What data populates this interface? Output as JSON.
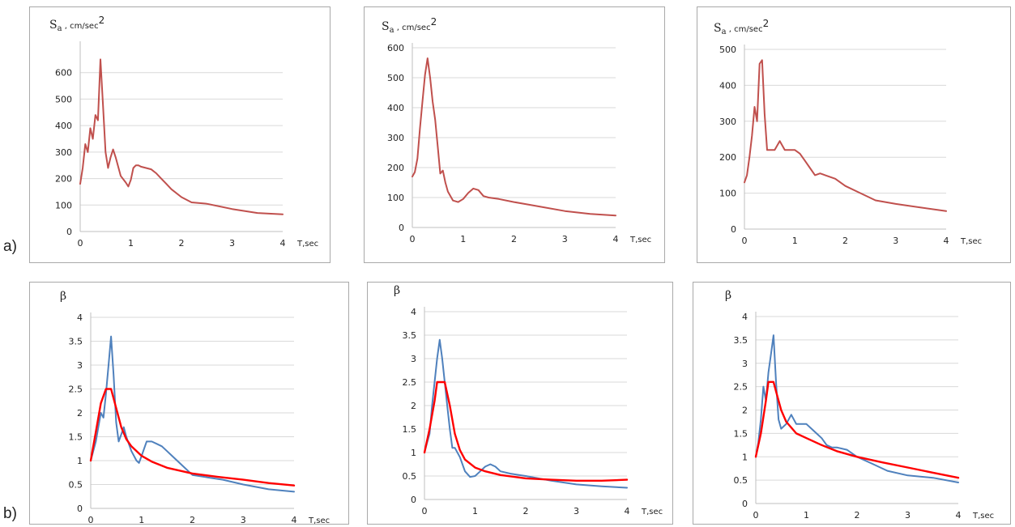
{
  "row_labels": [
    "a)",
    "b)"
  ],
  "chart_data": [
    {
      "type": "line",
      "row": "a)",
      "ylabel": "S",
      "ylabel_sub": "a",
      "ylabel_unit": ", cm/sec",
      "ylabel_sup": "2",
      "xlabel": "T,sec",
      "xlim": [
        0,
        4
      ],
      "ylim": [
        0,
        700
      ],
      "xticks": [
        0,
        1,
        2,
        3,
        4
      ],
      "yticks": [
        0,
        100,
        200,
        300,
        400,
        500,
        600
      ],
      "grid": true,
      "series": [
        {
          "color": "#c0504d",
          "x": [
            0,
            0.05,
            0.1,
            0.15,
            0.2,
            0.25,
            0.3,
            0.35,
            0.4,
            0.45,
            0.5,
            0.55,
            0.6,
            0.65,
            0.7,
            0.8,
            0.9,
            0.95,
            1.0,
            1.05,
            1.1,
            1.15,
            1.2,
            1.3,
            1.4,
            1.5,
            1.6,
            1.7,
            1.8,
            2.0,
            2.2,
            2.5,
            3.0,
            3.5,
            4.0
          ],
          "y": [
            180,
            240,
            330,
            300,
            390,
            350,
            440,
            420,
            650,
            480,
            300,
            240,
            280,
            310,
            280,
            210,
            185,
            170,
            195,
            240,
            250,
            250,
            245,
            240,
            235,
            220,
            200,
            180,
            160,
            130,
            110,
            105,
            85,
            70,
            65
          ]
        }
      ]
    },
    {
      "type": "line",
      "row": "a)",
      "ylabel": "S",
      "ylabel_sub": "a",
      "ylabel_unit": ", cm/sec",
      "ylabel_sup": "2",
      "xlabel": "T,sec",
      "xlim": [
        0,
        4
      ],
      "ylim": [
        0,
        600
      ],
      "xticks": [
        0,
        1,
        2,
        3,
        4
      ],
      "yticks": [
        0,
        100,
        200,
        300,
        400,
        500,
        600
      ],
      "grid": true,
      "series": [
        {
          "color": "#c0504d",
          "x": [
            0,
            0.05,
            0.1,
            0.15,
            0.2,
            0.25,
            0.3,
            0.35,
            0.4,
            0.45,
            0.5,
            0.55,
            0.6,
            0.65,
            0.7,
            0.8,
            0.9,
            1.0,
            1.1,
            1.2,
            1.3,
            1.4,
            1.5,
            1.7,
            2.0,
            2.5,
            3.0,
            3.5,
            4.0
          ],
          "y": [
            170,
            185,
            230,
            330,
            420,
            510,
            565,
            500,
            420,
            360,
            270,
            180,
            190,
            150,
            120,
            90,
            85,
            95,
            115,
            130,
            125,
            105,
            100,
            95,
            85,
            70,
            55,
            45,
            40
          ]
        }
      ]
    },
    {
      "type": "line",
      "row": "a)",
      "ylabel": "S",
      "ylabel_sub": "a",
      "ylabel_unit": ", cm/sec",
      "ylabel_sup": "2",
      "xlabel": "T,sec",
      "xlim": [
        0,
        4
      ],
      "ylim": [
        0,
        500
      ],
      "xticks": [
        0,
        1,
        2,
        3,
        4
      ],
      "yticks": [
        0,
        100,
        200,
        300,
        400,
        500
      ],
      "grid": true,
      "series": [
        {
          "color": "#c0504d",
          "x": [
            0,
            0.05,
            0.1,
            0.15,
            0.2,
            0.25,
            0.3,
            0.35,
            0.4,
            0.45,
            0.5,
            0.6,
            0.7,
            0.8,
            0.9,
            1.0,
            1.1,
            1.2,
            1.3,
            1.4,
            1.5,
            1.6,
            1.8,
            2.0,
            2.3,
            2.6,
            3.0,
            3.5,
            4.0
          ],
          "y": [
            130,
            150,
            200,
            260,
            340,
            300,
            460,
            470,
            320,
            220,
            220,
            220,
            245,
            220,
            220,
            220,
            210,
            190,
            170,
            150,
            155,
            150,
            140,
            120,
            100,
            80,
            70,
            60,
            50
          ]
        }
      ]
    },
    {
      "type": "line",
      "row": "b)",
      "ylabel": "β",
      "xlabel": "T,sec",
      "xlim": [
        0,
        4
      ],
      "ylim": [
        0,
        4
      ],
      "xticks": [
        0,
        1,
        2,
        3,
        4
      ],
      "yticks": [
        0,
        0.5,
        1,
        1.5,
        2,
        2.5,
        3,
        3.5,
        4
      ],
      "grid": true,
      "series": [
        {
          "color": "#4f81bd",
          "x": [
            0,
            0.1,
            0.15,
            0.2,
            0.25,
            0.3,
            0.35,
            0.4,
            0.45,
            0.5,
            0.55,
            0.6,
            0.65,
            0.7,
            0.8,
            0.9,
            0.95,
            1.0,
            1.1,
            1.2,
            1.3,
            1.4,
            1.5,
            1.6,
            1.8,
            2.0,
            2.3,
            2.6,
            3.0,
            3.5,
            4.0
          ],
          "y": [
            1.0,
            1.4,
            1.7,
            2.0,
            1.9,
            2.4,
            3.0,
            3.6,
            2.8,
            1.8,
            1.4,
            1.55,
            1.7,
            1.5,
            1.2,
            1.0,
            0.95,
            1.1,
            1.4,
            1.4,
            1.35,
            1.3,
            1.2,
            1.1,
            0.9,
            0.7,
            0.65,
            0.6,
            0.5,
            0.4,
            0.35
          ]
        },
        {
          "color": "#ff0000",
          "x": [
            0,
            0.1,
            0.2,
            0.3,
            0.4,
            0.5,
            0.6,
            0.7,
            0.8,
            1.0,
            1.2,
            1.5,
            2.0,
            2.5,
            3.0,
            3.5,
            4.0
          ],
          "y": [
            1.0,
            1.6,
            2.2,
            2.5,
            2.5,
            2.1,
            1.7,
            1.45,
            1.3,
            1.1,
            0.98,
            0.85,
            0.73,
            0.66,
            0.6,
            0.53,
            0.48
          ]
        }
      ]
    },
    {
      "type": "line",
      "row": "b)",
      "ylabel": "β",
      "xlabel": "T,sec",
      "xlim": [
        0,
        4
      ],
      "ylim": [
        0,
        4
      ],
      "xticks": [
        0,
        1,
        2,
        3,
        4
      ],
      "yticks": [
        0,
        0.5,
        1,
        1.5,
        2,
        2.5,
        3,
        3.5,
        4
      ],
      "grid": true,
      "series": [
        {
          "color": "#4f81bd",
          "x": [
            0,
            0.05,
            0.1,
            0.15,
            0.2,
            0.25,
            0.3,
            0.35,
            0.4,
            0.45,
            0.5,
            0.55,
            0.6,
            0.7,
            0.8,
            0.9,
            1.0,
            1.1,
            1.2,
            1.3,
            1.4,
            1.5,
            1.7,
            2.0,
            2.5,
            3.0,
            3.5,
            4.0
          ],
          "y": [
            1.0,
            1.2,
            1.4,
            2.0,
            2.5,
            3.0,
            3.4,
            3.0,
            2.5,
            2.0,
            1.5,
            1.1,
            1.1,
            0.9,
            0.6,
            0.48,
            0.5,
            0.6,
            0.7,
            0.75,
            0.7,
            0.6,
            0.55,
            0.5,
            0.4,
            0.32,
            0.28,
            0.25
          ]
        },
        {
          "color": "#ff0000",
          "x": [
            0,
            0.1,
            0.2,
            0.25,
            0.3,
            0.4,
            0.5,
            0.6,
            0.7,
            0.8,
            1.0,
            1.2,
            1.5,
            2.0,
            2.5,
            3.0,
            3.5,
            4.0
          ],
          "y": [
            1.0,
            1.5,
            2.1,
            2.5,
            2.5,
            2.5,
            2.0,
            1.4,
            1.05,
            0.85,
            0.68,
            0.6,
            0.52,
            0.45,
            0.42,
            0.4,
            0.4,
            0.42
          ]
        }
      ]
    },
    {
      "type": "line",
      "row": "b)",
      "ylabel": "β",
      "xlabel": "T,sec",
      "xlim": [
        0,
        4
      ],
      "ylim": [
        0,
        4
      ],
      "xticks": [
        0,
        1,
        2,
        3,
        4
      ],
      "yticks": [
        0,
        0.5,
        1,
        1.5,
        2,
        2.5,
        3,
        3.5,
        4
      ],
      "grid": true,
      "series": [
        {
          "color": "#4f81bd",
          "x": [
            0,
            0.05,
            0.1,
            0.15,
            0.2,
            0.25,
            0.3,
            0.35,
            0.4,
            0.45,
            0.5,
            0.6,
            0.7,
            0.8,
            0.9,
            1.0,
            1.1,
            1.2,
            1.3,
            1.4,
            1.5,
            1.6,
            1.8,
            2.0,
            2.3,
            2.6,
            3.0,
            3.5,
            4.0
          ],
          "y": [
            1.0,
            1.3,
            1.8,
            2.5,
            2.2,
            2.8,
            3.2,
            3.6,
            2.6,
            1.8,
            1.6,
            1.7,
            1.9,
            1.7,
            1.7,
            1.7,
            1.6,
            1.5,
            1.4,
            1.25,
            1.2,
            1.2,
            1.15,
            1.0,
            0.85,
            0.7,
            0.6,
            0.55,
            0.45
          ]
        },
        {
          "color": "#ff0000",
          "x": [
            0,
            0.1,
            0.2,
            0.25,
            0.3,
            0.35,
            0.4,
            0.5,
            0.6,
            0.8,
            1.0,
            1.3,
            1.6,
            2.0,
            2.5,
            3.0,
            3.5,
            4.0
          ],
          "y": [
            1.0,
            1.5,
            2.2,
            2.6,
            2.6,
            2.6,
            2.4,
            2.0,
            1.75,
            1.5,
            1.4,
            1.25,
            1.12,
            1.0,
            0.88,
            0.77,
            0.66,
            0.55
          ]
        }
      ]
    }
  ]
}
